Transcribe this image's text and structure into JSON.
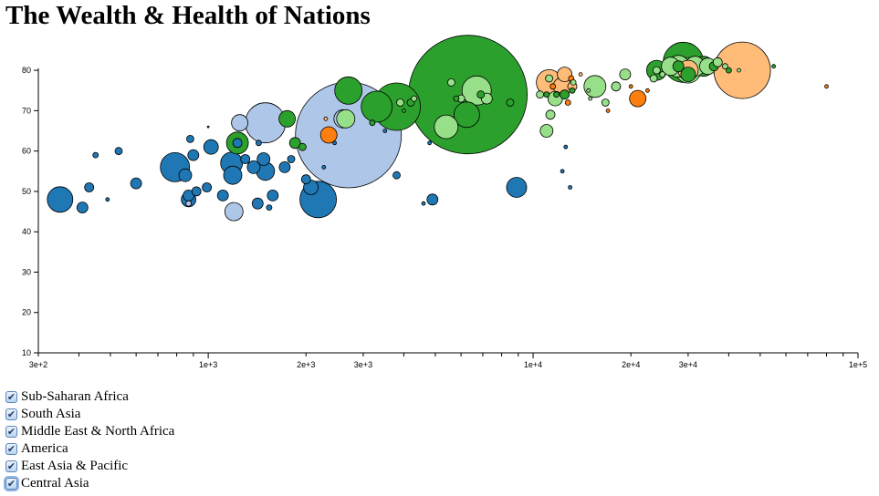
{
  "title": "The Wealth & Health of Nations",
  "legend": [
    {
      "label": "Sub-Saharan Africa",
      "checked": true
    },
    {
      "label": "South Asia",
      "checked": true
    },
    {
      "label": "Middle East & North Africa",
      "checked": true
    },
    {
      "label": "America",
      "checked": true
    },
    {
      "label": "East Asia & Pacific",
      "checked": true
    },
    {
      "label": "Central Asia",
      "checked": true,
      "focused": true
    }
  ],
  "icons": {
    "checkbox": "checkmark-icon"
  },
  "chart_data": {
    "type": "scatter",
    "title": "The Wealth & Health of Nations",
    "xscale": "log",
    "xlim": [
      300,
      100000
    ],
    "ylim": [
      10,
      85
    ],
    "xticks": [
      300,
      1000,
      2000,
      3000,
      10000,
      20000,
      30000,
      100000
    ],
    "xtick_labels": [
      "3e+2",
      "1e+3",
      "2e+3",
      "3e+3",
      "1e+4",
      "2e+4",
      "3e+4",
      "1e+5"
    ],
    "yticks": [
      10,
      20,
      30,
      40,
      50,
      60,
      70,
      80
    ],
    "grid": false,
    "colors": {
      "Sub-Saharan Africa": "#1f77b4",
      "South Asia": "#aec7e8",
      "Middle East & North Africa": "#ff7f0e",
      "America": "#2ca02c",
      "East Asia & Pacific": "#98df8a",
      "Central Asia": "#ffbb78"
    },
    "series": [
      {
        "name": "Sub-Saharan Africa",
        "points": [
          [
            350,
            48,
            14
          ],
          [
            410,
            46,
            6
          ],
          [
            430,
            51,
            5
          ],
          [
            450,
            59,
            3
          ],
          [
            490,
            48,
            2
          ],
          [
            530,
            60,
            4
          ],
          [
            600,
            52,
            6
          ],
          [
            790,
            56,
            16
          ],
          [
            850,
            54,
            7
          ],
          [
            870,
            48,
            8
          ],
          [
            870,
            49,
            6
          ],
          [
            880,
            63,
            4
          ],
          [
            900,
            59,
            6
          ],
          [
            920,
            50,
            5
          ],
          [
            990,
            51,
            5
          ],
          [
            1020,
            61,
            8
          ],
          [
            1110,
            49,
            6
          ],
          [
            1180,
            57,
            12
          ],
          [
            1190,
            54,
            10
          ],
          [
            1230,
            62,
            5
          ],
          [
            1300,
            58,
            5
          ],
          [
            1380,
            56,
            7
          ],
          [
            1420,
            47,
            6
          ],
          [
            1430,
            62,
            3
          ],
          [
            1480,
            58,
            7
          ],
          [
            1500,
            55,
            10
          ],
          [
            1540,
            46,
            3
          ],
          [
            1580,
            49,
            6
          ],
          [
            1720,
            56,
            6
          ],
          [
            1800,
            58,
            4
          ],
          [
            2000,
            53,
            5
          ],
          [
            2070,
            51,
            8
          ],
          [
            2180,
            48,
            20
          ],
          [
            2270,
            56,
            2
          ],
          [
            2450,
            62,
            2
          ],
          [
            3500,
            65,
            2
          ],
          [
            3800,
            54,
            4
          ],
          [
            4600,
            47,
            2
          ],
          [
            4900,
            48,
            6
          ],
          [
            8900,
            51,
            11
          ],
          [
            12300,
            55,
            2
          ],
          [
            12600,
            61,
            2
          ],
          [
            13000,
            51,
            2
          ],
          [
            1000,
            66,
            1
          ],
          [
            4800,
            62,
            2
          ]
        ]
      },
      {
        "name": "South Asia",
        "points": [
          [
            1200,
            45,
            10
          ],
          [
            1500,
            67,
            22
          ],
          [
            2700,
            64,
            58
          ],
          [
            2600,
            68,
            10
          ],
          [
            1250,
            67,
            9
          ],
          [
            870,
            47,
            3
          ]
        ]
      },
      {
        "name": "Middle East & North Africa",
        "points": [
          [
            2350,
            64,
            9
          ],
          [
            11500,
            76,
            3
          ],
          [
            12800,
            72,
            3
          ],
          [
            13100,
            78,
            3
          ],
          [
            17000,
            70,
            2
          ],
          [
            20000,
            76,
            2
          ],
          [
            21000,
            73,
            9
          ],
          [
            22500,
            75,
            2
          ],
          [
            80000,
            76,
            2
          ]
        ]
      },
      {
        "name": "America",
        "points": [
          [
            1230,
            62,
            12
          ],
          [
            1750,
            68,
            9
          ],
          [
            1850,
            62,
            6
          ],
          [
            1950,
            61,
            4
          ],
          [
            2700,
            75,
            15
          ],
          [
            3300,
            71,
            17
          ],
          [
            3800,
            71,
            26
          ],
          [
            3200,
            67,
            3
          ],
          [
            4000,
            70,
            2
          ],
          [
            4200,
            72,
            4
          ],
          [
            6300,
            74,
            65
          ],
          [
            6250,
            69,
            14
          ],
          [
            5800,
            73,
            3
          ],
          [
            6900,
            74,
            4
          ],
          [
            8500,
            72,
            4
          ],
          [
            11000,
            74,
            3
          ],
          [
            11800,
            74,
            3
          ],
          [
            12500,
            74,
            5
          ],
          [
            13200,
            75,
            3
          ],
          [
            24000,
            80,
            11
          ],
          [
            29000,
            82,
            22
          ],
          [
            30000,
            79,
            8
          ],
          [
            28000,
            81,
            6
          ],
          [
            33500,
            81,
            11
          ],
          [
            36000,
            81,
            5
          ],
          [
            40000,
            80,
            3
          ],
          [
            55000,
            81,
            2
          ]
        ]
      },
      {
        "name": "East Asia & Pacific",
        "points": [
          [
            2650,
            68,
            10
          ],
          [
            3900,
            72,
            4
          ],
          [
            4300,
            73,
            3
          ],
          [
            5400,
            66,
            13
          ],
          [
            5600,
            77,
            4
          ],
          [
            6000,
            73,
            4
          ],
          [
            6700,
            75,
            16
          ],
          [
            7200,
            73,
            6
          ],
          [
            10500,
            74,
            4
          ],
          [
            11000,
            65,
            7
          ],
          [
            11200,
            78,
            4
          ],
          [
            11300,
            69,
            5
          ],
          [
            11700,
            73,
            8
          ],
          [
            13300,
            77,
            3
          ],
          [
            14800,
            75,
            2
          ],
          [
            15000,
            73,
            2
          ],
          [
            15500,
            76,
            12
          ],
          [
            16700,
            72,
            4
          ],
          [
            18000,
            76,
            5
          ],
          [
            19200,
            79,
            6
          ],
          [
            23500,
            78,
            4
          ],
          [
            24000,
            80,
            4
          ],
          [
            25000,
            79,
            3
          ],
          [
            26500,
            81,
            10
          ],
          [
            28000,
            81,
            12
          ],
          [
            30000,
            80,
            14
          ],
          [
            31500,
            81,
            11
          ],
          [
            34500,
            81,
            9
          ],
          [
            37000,
            82,
            5
          ],
          [
            39000,
            81,
            3
          ],
          [
            43000,
            80,
            2
          ]
        ]
      },
      {
        "name": "Central Asia",
        "points": [
          [
            2300,
            68,
            2
          ],
          [
            11200,
            77,
            14
          ],
          [
            12300,
            76,
            10
          ],
          [
            12500,
            79,
            8
          ],
          [
            13200,
            76,
            5
          ],
          [
            30000,
            80,
            11
          ],
          [
            44000,
            80,
            31
          ],
          [
            14000,
            79,
            2
          ]
        ]
      }
    ]
  }
}
